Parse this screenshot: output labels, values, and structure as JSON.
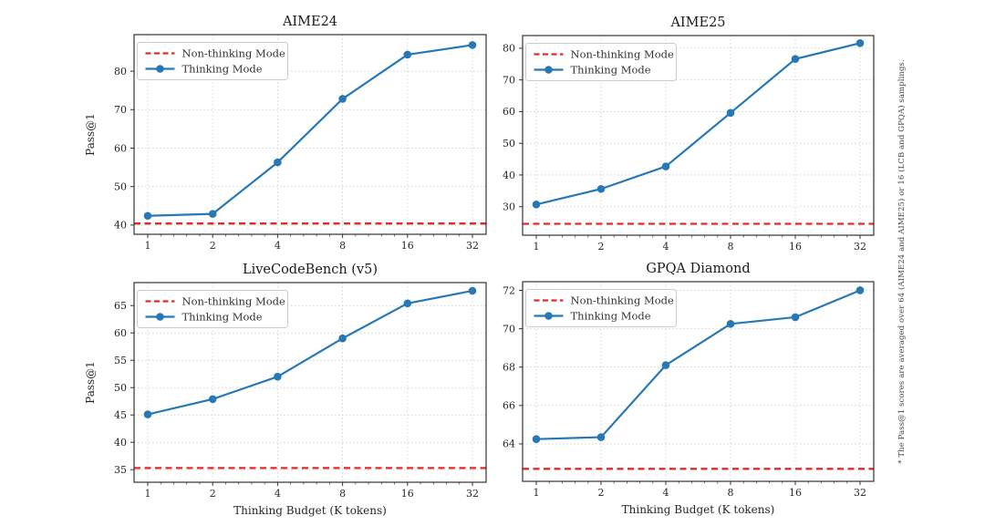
{
  "caption": "* The Pass@1 scores are averaged over 64 (AIME24 and AIME25) or 16 (LCB and GPQA) samplings.",
  "legend": {
    "non_thinking_label": "Non-thinking Mode",
    "thinking_label": "Thinking Mode"
  },
  "colors": {
    "thinking_line": "#2878b5",
    "non_thinking_line": "#e82727",
    "grid": "#cccccc",
    "spine": "#333333",
    "text": "#262626"
  },
  "chart_data": [
    {
      "id": "aime24",
      "type": "line",
      "title": "AIME24",
      "xlabel": "",
      "ylabel": "Pass@1",
      "x_scale": "log2",
      "x": [
        1,
        2,
        4,
        8,
        16,
        32
      ],
      "xticks": [
        1,
        2,
        4,
        8,
        16,
        32
      ],
      "yticks": [
        40,
        50,
        60,
        70,
        80
      ],
      "ylim": [
        37.6,
        89.5
      ],
      "grid": true,
      "legend_position": "upper left",
      "series": [
        {
          "name": "Thinking Mode",
          "values": [
            42.4,
            42.9,
            56.3,
            72.8,
            84.3,
            86.8
          ]
        }
      ],
      "baseline": {
        "name": "Non-thinking Mode",
        "value": 40.4
      }
    },
    {
      "id": "aime25",
      "type": "line",
      "title": "AIME25",
      "xlabel": "",
      "ylabel": "",
      "x_scale": "log2",
      "x": [
        1,
        2,
        4,
        8,
        16,
        32
      ],
      "xticks": [
        1,
        2,
        4,
        8,
        16,
        32
      ],
      "yticks": [
        30,
        40,
        50,
        60,
        70,
        80
      ],
      "ylim": [
        21.0,
        84.0
      ],
      "grid": true,
      "legend_position": "upper left",
      "series": [
        {
          "name": "Thinking Mode",
          "values": [
            30.7,
            35.6,
            42.7,
            59.6,
            76.6,
            81.6
          ]
        }
      ],
      "baseline": {
        "name": "Non-thinking Mode",
        "value": 24.6
      }
    },
    {
      "id": "livecodebench",
      "type": "line",
      "title": "LiveCodeBench (v5)",
      "xlabel": "Thinking Budget (K tokens)",
      "ylabel": "Pass@1",
      "x_scale": "log2",
      "x": [
        1,
        2,
        4,
        8,
        16,
        32
      ],
      "xticks": [
        1,
        2,
        4,
        8,
        16,
        32
      ],
      "yticks": [
        35,
        40,
        45,
        50,
        55,
        60,
        65
      ],
      "ylim": [
        32.7,
        69.2
      ],
      "grid": true,
      "legend_position": "upper left",
      "series": [
        {
          "name": "Thinking Mode",
          "values": [
            45.1,
            47.9,
            52.0,
            59.0,
            65.4,
            67.7
          ]
        }
      ],
      "baseline": {
        "name": "Non-thinking Mode",
        "value": 35.3
      }
    },
    {
      "id": "gpqa",
      "type": "line",
      "title": "GPQA Diamond",
      "xlabel": "Thinking Budget (K tokens)",
      "ylabel": "",
      "x_scale": "log2",
      "x": [
        1,
        2,
        4,
        8,
        16,
        32
      ],
      "xticks": [
        1,
        2,
        4,
        8,
        16,
        32
      ],
      "yticks": [
        64,
        66,
        68,
        70,
        72
      ],
      "ylim": [
        62.05,
        72.45
      ],
      "grid": true,
      "legend_position": "upper left",
      "series": [
        {
          "name": "Thinking Mode",
          "values": [
            64.25,
            64.35,
            68.1,
            70.25,
            70.6,
            72.0
          ]
        }
      ],
      "baseline": {
        "name": "Non-thinking Mode",
        "value": 62.7
      }
    }
  ]
}
